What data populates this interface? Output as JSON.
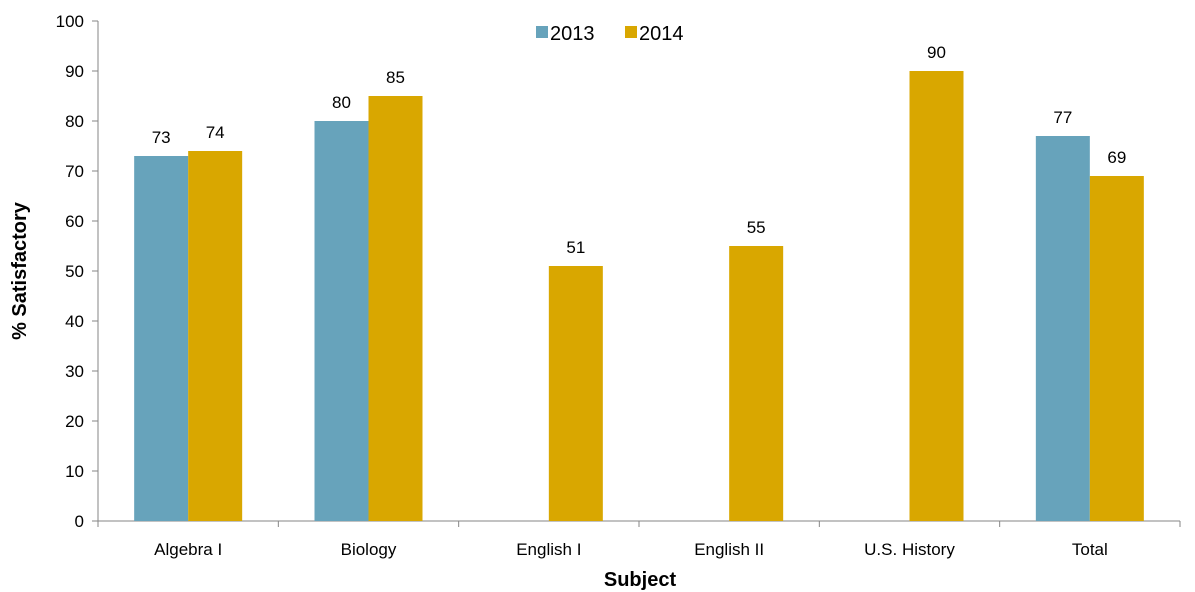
{
  "chart_data": {
    "type": "bar",
    "categories": [
      "Algebra I",
      "Biology",
      "English I",
      "English II",
      "U.S. History",
      "Total"
    ],
    "series": [
      {
        "name": "2013",
        "color": "#67a3bb",
        "values": [
          73,
          80,
          null,
          null,
          null,
          77
        ]
      },
      {
        "name": "2014",
        "color": "#d9a700",
        "values": [
          74,
          85,
          51,
          55,
          90,
          69
        ]
      }
    ],
    "xlabel": "Subject",
    "ylabel": "% Satisfactory",
    "ylim": [
      0,
      100
    ],
    "yticks": [
      0,
      10,
      20,
      30,
      40,
      50,
      60,
      70,
      80,
      90,
      100
    ],
    "grid": false,
    "legend_position": "top-center",
    "data_labels": true
  }
}
